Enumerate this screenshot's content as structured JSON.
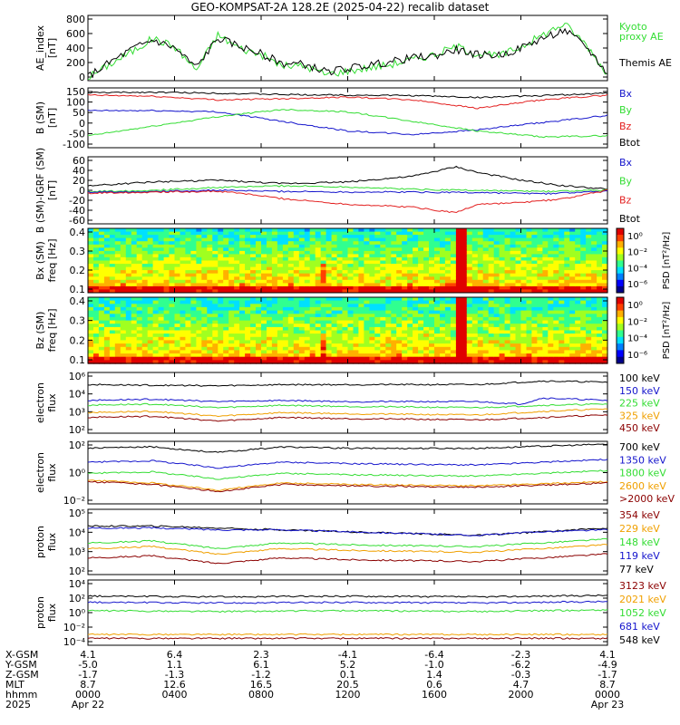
{
  "title": "GEO-KOMPSAT-2A 128.2E (2025-04-22) recalib dataset",
  "colors": {
    "black": "#000000",
    "red": "#e32020",
    "green": "#33dd33",
    "blue": "#1414cc",
    "orange": "#f0a000",
    "darkred": "#8b0000",
    "cyan": "#1fbfbf"
  },
  "chart_data": [
    {
      "id": "ae",
      "type": "line",
      "ylabel": [
        "AE_index",
        "[nT]"
      ],
      "yticks": [
        "800",
        "600",
        "400",
        "200",
        "0"
      ],
      "ylim": [
        0,
        800
      ],
      "legend": [
        {
          "text": "Kyoto",
          "color": "green"
        },
        {
          "text": "proxy AE",
          "color": "green"
        },
        {
          "text": "Themis AE",
          "color": "black"
        }
      ],
      "series": [
        {
          "name": "Kyoto proxy AE",
          "color": "green",
          "x": [
            0,
            1,
            2,
            3,
            4,
            5,
            6,
            7,
            8,
            9,
            10,
            11,
            12,
            13,
            14,
            15,
            16,
            17,
            18,
            19,
            20,
            21,
            22,
            23,
            24
          ],
          "y": [
            40,
            200,
            350,
            520,
            420,
            130,
            560,
            400,
            320,
            180,
            180,
            80,
            120,
            160,
            200,
            260,
            320,
            420,
            330,
            300,
            420,
            560,
            700,
            450,
            80
          ]
        },
        {
          "name": "Themis AE",
          "color": "black",
          "x": [
            0,
            1,
            2,
            3,
            4,
            5,
            6,
            7,
            8,
            9,
            10,
            11,
            12,
            13,
            14,
            15,
            16,
            17,
            18,
            19,
            20,
            21,
            22,
            23,
            24
          ],
          "y": [
            50,
            220,
            380,
            500,
            400,
            160,
            520,
            420,
            330,
            210,
            200,
            110,
            150,
            190,
            230,
            280,
            300,
            380,
            320,
            310,
            400,
            520,
            620,
            420,
            90
          ]
        }
      ]
    },
    {
      "id": "bsm",
      "type": "line",
      "ylabel": [
        "B (SM)",
        "[nT]"
      ],
      "yticks": [
        "150",
        "100",
        "50",
        "0",
        "-50",
        "-100"
      ],
      "ylim": [
        -100,
        150
      ],
      "legend": [
        {
          "text": "Bx",
          "color": "blue"
        },
        {
          "text": "By",
          "color": "green"
        },
        {
          "text": "Bz",
          "color": "red"
        },
        {
          "text": "Btot",
          "color": "black"
        }
      ],
      "series": [
        {
          "name": "Btot",
          "color": "black",
          "x": [
            0,
            3,
            6,
            9,
            12,
            15,
            18,
            21,
            24
          ],
          "y": [
            130,
            132,
            128,
            122,
            120,
            118,
            110,
            118,
            128
          ]
        },
        {
          "name": "Bz",
          "color": "red",
          "x": [
            0,
            3,
            6,
            9,
            12,
            15,
            18,
            21,
            24
          ],
          "y": [
            120,
            115,
            100,
            105,
            112,
            100,
            65,
            100,
            120
          ]
        },
        {
          "name": "Bx",
          "color": "blue",
          "x": [
            0,
            3,
            6,
            9,
            12,
            15,
            18,
            21,
            24
          ],
          "y": [
            55,
            55,
            50,
            10,
            -30,
            -45,
            -25,
            5,
            35
          ]
        },
        {
          "name": "By",
          "color": "green",
          "x": [
            0,
            3,
            6,
            9,
            12,
            15,
            18,
            21,
            24
          ],
          "y": [
            -50,
            -10,
            30,
            60,
            50,
            10,
            -30,
            -55,
            -50
          ]
        }
      ]
    },
    {
      "id": "bdiff",
      "type": "line",
      "ylabel": [
        "B (SM)-IGRF (SM)",
        "[nT]"
      ],
      "yticks": [
        "60",
        "40",
        "20",
        "0",
        "-20",
        "-40",
        "-60"
      ],
      "ylim": [
        -60,
        60
      ],
      "legend": [
        {
          "text": "Bx",
          "color": "blue"
        },
        {
          "text": "By",
          "color": "green"
        },
        {
          "text": "Bz",
          "color": "red"
        },
        {
          "text": "Btot",
          "color": "black"
        }
      ],
      "series": [
        {
          "name": "Btot",
          "color": "black",
          "x": [
            0,
            3,
            6,
            9,
            12,
            15,
            17,
            18,
            20,
            22,
            24
          ],
          "y": [
            8,
            15,
            18,
            12,
            15,
            25,
            42,
            32,
            18,
            8,
            2
          ]
        },
        {
          "name": "By",
          "color": "green",
          "x": [
            0,
            3,
            6,
            9,
            12,
            15,
            18,
            21,
            24
          ],
          "y": [
            -2,
            0,
            5,
            8,
            6,
            2,
            0,
            -2,
            0
          ]
        },
        {
          "name": "Bx",
          "color": "blue",
          "x": [
            0,
            3,
            6,
            9,
            12,
            15,
            18,
            21,
            24
          ],
          "y": [
            -3,
            -2,
            0,
            -2,
            -3,
            -3,
            -4,
            -6,
            -2
          ]
        },
        {
          "name": "Bz",
          "color": "red",
          "x": [
            0,
            3,
            6,
            7,
            9,
            12,
            15,
            17,
            18,
            20,
            22,
            24
          ],
          "y": [
            -5,
            -3,
            -2,
            -5,
            -15,
            -25,
            -30,
            -40,
            -25,
            -22,
            -15,
            0
          ]
        }
      ]
    },
    {
      "id": "bx_spec",
      "type": "heatmap",
      "ylabel": [
        "Bx (SM)",
        "freq [Hz]"
      ],
      "yticks": [
        "0.4",
        "0.3",
        "0.2",
        "0.1"
      ],
      "ylim": [
        0,
        0.5
      ],
      "colorbar": {
        "label": "PSD [nT²/Hz]",
        "ticks": [
          "10⁰",
          "10⁻²",
          "10⁻⁴",
          "10⁻⁶"
        ]
      }
    },
    {
      "id": "bz_spec",
      "type": "heatmap",
      "ylabel": [
        "Bz (SM)",
        "freq [Hz]"
      ],
      "yticks": [
        "0.4",
        "0.3",
        "0.2",
        "0.1"
      ],
      "ylim": [
        0,
        0.5
      ],
      "colorbar": {
        "label": "PSD [nT²/Hz]",
        "ticks": [
          "10⁰",
          "10⁻²",
          "10⁻⁴",
          "10⁻⁶"
        ]
      }
    },
    {
      "id": "elec_lo",
      "type": "line",
      "log": true,
      "ylabel": [
        "electron",
        "flux"
      ],
      "yticks": [
        "10⁶",
        "10⁴",
        "10³",
        "10²"
      ],
      "ylim": [
        1,
        6
      ],
      "legend": [
        {
          "text": "100 keV",
          "color": "black"
        },
        {
          "text": "150 keV",
          "color": "blue"
        },
        {
          "text": "225 keV",
          "color": "green"
        },
        {
          "text": "325 keV",
          "color": "orange"
        },
        {
          "text": "450 keV",
          "color": "darkred"
        }
      ],
      "series": [
        {
          "name": "100 keV",
          "color": "black",
          "x": [
            0,
            6,
            9,
            12,
            18,
            21,
            24
          ],
          "y": [
            5.0,
            4.9,
            5.0,
            5.0,
            5.0,
            5.3,
            5.2
          ]
        },
        {
          "name": "150 keV",
          "color": "blue",
          "x": [
            0,
            3,
            6,
            9,
            12,
            18,
            20,
            21,
            24
          ],
          "y": [
            3.7,
            3.8,
            3.6,
            3.7,
            3.6,
            3.6,
            3.4,
            3.9,
            3.7
          ]
        },
        {
          "name": "225 keV",
          "color": "green",
          "x": [
            0,
            3,
            6,
            9,
            12,
            18,
            21,
            24
          ],
          "y": [
            3.3,
            3.4,
            3.1,
            3.3,
            3.2,
            3.1,
            3.3,
            3.4
          ]
        },
        {
          "name": "325 keV",
          "color": "orange",
          "x": [
            0,
            3,
            6,
            9,
            12,
            18,
            21,
            24
          ],
          "y": [
            2.7,
            2.8,
            2.4,
            2.7,
            2.6,
            2.5,
            2.8,
            3.0
          ]
        },
        {
          "name": "450 keV",
          "color": "darkred",
          "x": [
            0,
            3,
            6,
            9,
            12,
            18,
            21,
            24
          ],
          "y": [
            2.3,
            2.4,
            2.0,
            2.3,
            2.2,
            2.1,
            2.3,
            2.5
          ]
        }
      ]
    },
    {
      "id": "elec_hi",
      "type": "line",
      "log": true,
      "ylabel": [
        "electron",
        "flux"
      ],
      "yticks": [
        "10²",
        "10⁰",
        "10⁻²"
      ],
      "ylim": [
        -2.5,
        2
      ],
      "legend": [
        {
          "text": "700 keV",
          "color": "black"
        },
        {
          "text": "1350 keV",
          "color": "blue"
        },
        {
          "text": "1800 keV",
          "color": "green"
        },
        {
          "text": "2600 keV",
          "color": "orange"
        },
        {
          "text": ">2000 keV",
          "color": "darkred"
        }
      ],
      "series": [
        {
          "name": "700 keV",
          "color": "black",
          "x": [
            0,
            3,
            6,
            9,
            12,
            18,
            24
          ],
          "y": [
            1.5,
            1.6,
            1.2,
            1.6,
            1.5,
            1.5,
            1.8
          ]
        },
        {
          "name": "1350 keV",
          "color": "blue",
          "x": [
            0,
            3,
            6,
            9,
            12,
            18,
            24
          ],
          "y": [
            0.5,
            0.6,
            0.1,
            0.5,
            0.4,
            0.3,
            0.7
          ]
        },
        {
          "name": "1800 keV",
          "color": "green",
          "x": [
            0,
            3,
            6,
            9,
            12,
            18,
            24
          ],
          "y": [
            -0.3,
            -0.2,
            -0.7,
            -0.3,
            -0.4,
            -0.5,
            -0.1
          ]
        },
        {
          "name": "2600 keV",
          "color": "orange",
          "x": [
            0,
            3,
            6,
            9,
            12,
            18,
            24
          ],
          "y": [
            -0.8,
            -1.0,
            -1.5,
            -1.0,
            -1.1,
            -1.2,
            -0.9
          ]
        },
        {
          "name": ">2000 keV",
          "color": "darkred",
          "x": [
            0,
            3,
            6,
            9,
            12,
            18,
            24
          ],
          "y": [
            -0.9,
            -1.1,
            -1.6,
            -1.1,
            -1.2,
            -1.3,
            -1.0
          ]
        }
      ]
    },
    {
      "id": "prot_lo",
      "type": "line",
      "log": true,
      "ylabel": [
        "proton",
        "flux"
      ],
      "yticks": [
        "10⁵",
        "10⁴",
        "10³",
        "10²"
      ],
      "ylim": [
        1.5,
        5
      ],
      "legend": [
        {
          "text": "354 keV",
          "color": "darkred"
        },
        {
          "text": "229 keV",
          "color": "orange"
        },
        {
          "text": "148 keV",
          "color": "green"
        },
        {
          "text": "119 keV",
          "color": "blue"
        },
        {
          "text": "77 keV",
          "color": "black"
        }
      ],
      "series": [
        {
          "name": "77 keV",
          "color": "black",
          "x": [
            0,
            3,
            6,
            9,
            12,
            15,
            18,
            21,
            24
          ],
          "y": [
            4.1,
            4.1,
            4.0,
            3.9,
            3.8,
            3.7,
            3.6,
            3.8,
            4.0
          ]
        },
        {
          "name": "119 keV",
          "color": "blue",
          "x": [
            0,
            3,
            6,
            9,
            12,
            15,
            18,
            21,
            24
          ],
          "y": [
            4.0,
            4.0,
            3.9,
            3.9,
            3.8,
            3.7,
            3.6,
            3.8,
            3.9
          ]
        },
        {
          "name": "148 keV",
          "color": "green",
          "x": [
            0,
            3,
            6,
            9,
            12,
            18,
            21,
            24
          ],
          "y": [
            3.2,
            3.3,
            2.9,
            3.2,
            3.1,
            3.0,
            3.2,
            3.4
          ]
        },
        {
          "name": "229 keV",
          "color": "orange",
          "x": [
            0,
            3,
            6,
            9,
            12,
            18,
            21,
            24
          ],
          "y": [
            2.9,
            3.0,
            2.6,
            2.9,
            2.8,
            2.7,
            2.9,
            3.1
          ]
        },
        {
          "name": "354 keV",
          "color": "darkred",
          "x": [
            0,
            3,
            6,
            9,
            12,
            18,
            21,
            24
          ],
          "y": [
            2.4,
            2.5,
            2.1,
            2.4,
            2.3,
            2.2,
            2.4,
            2.6
          ]
        }
      ]
    },
    {
      "id": "prot_hi",
      "type": "line",
      "log": true,
      "ylabel": [
        "proton",
        "flux"
      ],
      "yticks": [
        "10⁴",
        "10²",
        "10⁰",
        "10⁻²",
        "10⁻⁴"
      ],
      "ylim": [
        -4.5,
        4
      ],
      "legend": [
        {
          "text": "3123 keV",
          "color": "darkred"
        },
        {
          "text": "2021 keV",
          "color": "orange"
        },
        {
          "text": "1052 keV",
          "color": "green"
        },
        {
          "text": "681 keV",
          "color": "blue"
        },
        {
          "text": "548 keV",
          "color": "black"
        }
      ],
      "series": [
        {
          "name": "548 keV",
          "color": "black",
          "x": [
            0,
            6,
            12,
            18,
            24
          ],
          "y": [
            1.9,
            1.8,
            1.9,
            1.8,
            2.0
          ]
        },
        {
          "name": "681 keV",
          "color": "blue",
          "x": [
            0,
            6,
            12,
            18,
            24
          ],
          "y": [
            1.1,
            1.0,
            1.1,
            1.0,
            1.2
          ]
        },
        {
          "name": "1052 keV",
          "color": "green",
          "x": [
            0,
            6,
            12,
            18,
            24
          ],
          "y": [
            0.0,
            -0.1,
            0.0,
            -0.1,
            0.1
          ]
        },
        {
          "name": "2021 keV",
          "color": "orange",
          "x": [
            0,
            6,
            12,
            18,
            24
          ],
          "y": [
            -3.1,
            -3.1,
            -3.1,
            -3.1,
            -3.1
          ]
        },
        {
          "name": "3123 keV",
          "color": "darkred",
          "x": [
            0,
            6,
            12,
            18,
            24
          ],
          "y": [
            -3.6,
            -3.6,
            -3.6,
            -3.6,
            -3.6
          ]
        }
      ]
    }
  ],
  "time_axis": {
    "xlim": [
      0,
      24
    ],
    "tick_hours": [
      0,
      4,
      8,
      12,
      16,
      20,
      24
    ],
    "rows": [
      {
        "label": "X-GSM",
        "values": [
          "4.1",
          "6.4",
          "2.3",
          "-4.1",
          "-6.4",
          "-2.3",
          "4.1"
        ]
      },
      {
        "label": "Y-GSM",
        "values": [
          "-5.0",
          "1.1",
          "6.1",
          "5.2",
          "-1.0",
          "-6.2",
          "-4.9"
        ]
      },
      {
        "label": "Z-GSM",
        "values": [
          "-1.7",
          "-1.3",
          "-1.2",
          "0.1",
          "1.4",
          "-0.3",
          "-1.7"
        ]
      },
      {
        "label": "MLT",
        "values": [
          "8.7",
          "12.6",
          "16.5",
          "20.5",
          "0.6",
          "4.7",
          "8.7"
        ]
      },
      {
        "label": "hhmm",
        "values": [
          "0000",
          "0400",
          "0800",
          "1200",
          "1600",
          "2000",
          "0000"
        ]
      },
      {
        "label": "2025",
        "values": [
          "Apr 22",
          "",
          "",
          "",
          "",
          "",
          "Apr 23"
        ]
      }
    ]
  }
}
